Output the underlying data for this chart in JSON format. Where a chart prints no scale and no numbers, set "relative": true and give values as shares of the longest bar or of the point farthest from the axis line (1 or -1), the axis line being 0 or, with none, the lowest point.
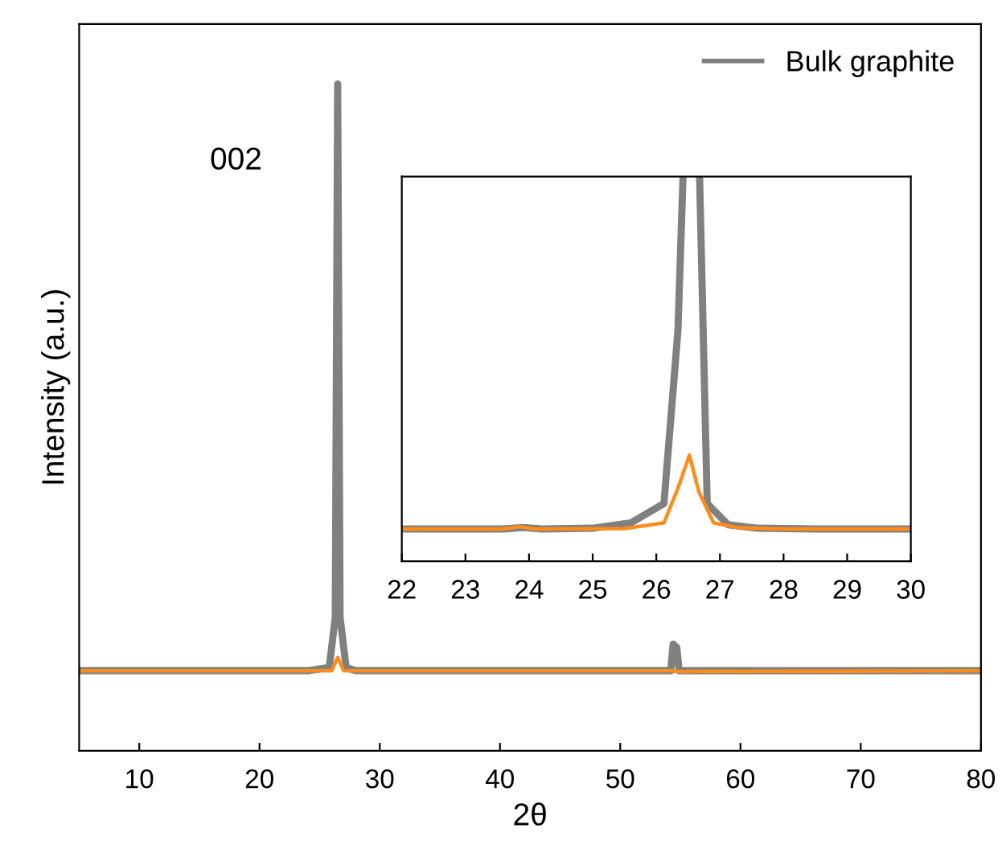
{
  "chart_data": [
    {
      "type": "line",
      "xlabel": "2θ",
      "ylabel": "Intensity (a.u.)",
      "relative": true,
      "xlim": [
        5,
        80
      ],
      "xticks": [
        10,
        20,
        30,
        40,
        50,
        60,
        70,
        80
      ],
      "legend": "top right",
      "annotations": [
        "002"
      ],
      "series": [
        {
          "name": "Bulk graphite",
          "color": "#808080",
          "x": [
            5,
            24,
            25.8,
            26.3,
            26.5,
            26.7,
            27.2,
            28,
            54.2,
            54.4,
            54.7,
            54.9,
            80
          ],
          "values": [
            0.12,
            0.12,
            0.125,
            0.2,
            1.0,
            0.2,
            0.125,
            0.12,
            0.12,
            0.16,
            0.155,
            0.12,
            0.12
          ]
        },
        {
          "color": "#ff8c1a",
          "x": [
            5,
            26.0,
            26.5,
            27.0,
            54.4,
            54.6,
            80
          ],
          "values": [
            0.12,
            0.12,
            0.14,
            0.12,
            0.12,
            0.119,
            0.12
          ]
        }
      ]
    },
    {
      "type": "line",
      "relative": true,
      "xlim": [
        22,
        30
      ],
      "xticks": [
        22,
        23,
        24,
        25,
        26,
        27,
        28,
        29,
        30
      ],
      "series": [
        {
          "color": "#808080",
          "x": [
            22,
            23.6,
            23.9,
            24.2,
            25.0,
            25.6,
            26.12,
            26.34,
            26.42,
            26.5,
            26.68,
            26.8,
            27.13,
            27.6,
            28.5,
            30
          ],
          "values": [
            0.084,
            0.084,
            0.088,
            0.084,
            0.086,
            0.1,
            0.15,
            0.6,
            1.0,
            null,
            1.0,
            0.15,
            0.095,
            0.086,
            0.084,
            0.084
          ]
        },
        {
          "color": "#ff8c1a",
          "x": [
            22,
            23.6,
            23.85,
            24.1,
            25.5,
            26.12,
            26.34,
            26.52,
            26.67,
            26.9,
            27.3,
            28,
            30
          ],
          "values": [
            0.084,
            0.084,
            0.09,
            0.084,
            0.085,
            0.1,
            0.19,
            0.276,
            0.18,
            0.1,
            0.087,
            0.084,
            0.084
          ]
        }
      ]
    }
  ]
}
